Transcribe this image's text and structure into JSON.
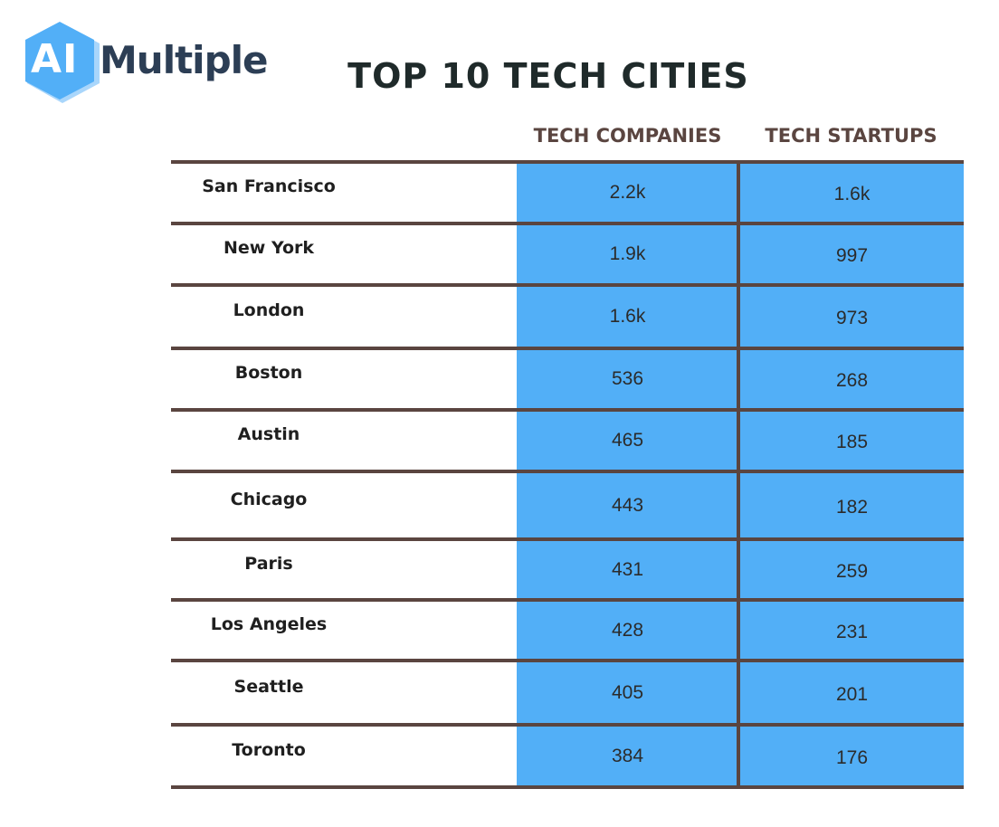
{
  "logo": {
    "mark": "AI",
    "word": "Multiple",
    "brand_color": "#52aff7"
  },
  "chart_data": {
    "type": "table",
    "title": "TOP 10 TECH CITIES",
    "columns": [
      "",
      "TECH COMPANIES",
      "TECH STARTUPS"
    ],
    "rows": [
      {
        "city": "San Francisco",
        "companies": "2.2k",
        "startups": "1.6k"
      },
      {
        "city": "New York",
        "companies": "1.9k",
        "startups": "997"
      },
      {
        "city": "London",
        "companies": "1.6k",
        "startups": "973"
      },
      {
        "city": "Boston",
        "companies": "536",
        "startups": "268"
      },
      {
        "city": "Austin",
        "companies": "465",
        "startups": "185"
      },
      {
        "city": "Chicago",
        "companies": "443",
        "startups": "182"
      },
      {
        "city": "Paris",
        "companies": "431",
        "startups": "259"
      },
      {
        "city": "Los Angeles",
        "companies": "428",
        "startups": "231"
      },
      {
        "city": "Seattle",
        "companies": "405",
        "startups": "201"
      },
      {
        "city": "Toronto",
        "companies": "384",
        "startups": "176"
      }
    ],
    "colors": {
      "value_fill": "#52aff7",
      "rule": "#5a4540",
      "header_text": "#5a4540"
    }
  }
}
